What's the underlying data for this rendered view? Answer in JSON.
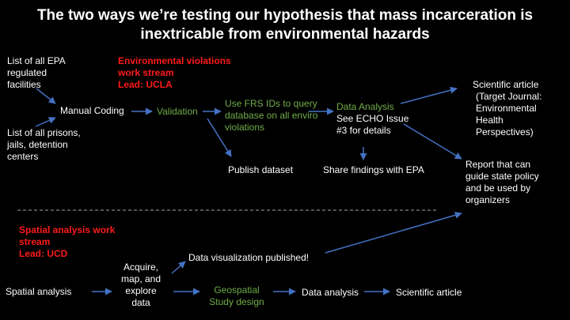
{
  "title": {
    "line1": "The two ways we’re testing our hypothesis that mass incarceration is",
    "line2": "inextricable from environmental hazards"
  },
  "stream1": {
    "label_line1": "Environmental violations",
    "label_line2": "work stream",
    "lead": "Lead: UCLA",
    "epa_list": [
      "List of all EPA",
      "regulated",
      "facilities"
    ],
    "prison_list": [
      "List of all prisons,",
      "jails, detention",
      "centers"
    ],
    "manual_coding": "Manual Coding",
    "validation": "Validation",
    "frs": [
      "Use FRS IDs to query",
      "database on all enviro",
      "violations"
    ],
    "analysis": [
      "Data Analysis",
      "See ECHO Issue",
      "#3 for details"
    ],
    "publish": "Publish dataset",
    "share": "Share findings with EPA",
    "article": [
      "Scientific article",
      "(Target Journal:",
      "Environmental",
      "Health",
      "Perspectives)"
    ],
    "report": [
      "Report that can",
      "guide state policy",
      "and be used by",
      "organizers"
    ]
  },
  "stream2": {
    "label_line1": "Spatial analysis work",
    "label_line2": "stream",
    "lead": "Lead: UCD",
    "spatial": "Spatial analysis",
    "acquire": [
      "Acquire,",
      "map, and",
      "explore",
      "data"
    ],
    "viz": "Data visualization published!",
    "geo": [
      "Geospatial",
      "Study design"
    ],
    "analysis": "Data analysis",
    "article": "Scientific article"
  },
  "colors": {
    "background": "#000000",
    "text": "#ffffff",
    "green": "#70ad47",
    "red": "#ff1a1a",
    "arrow": "#4472c4"
  }
}
